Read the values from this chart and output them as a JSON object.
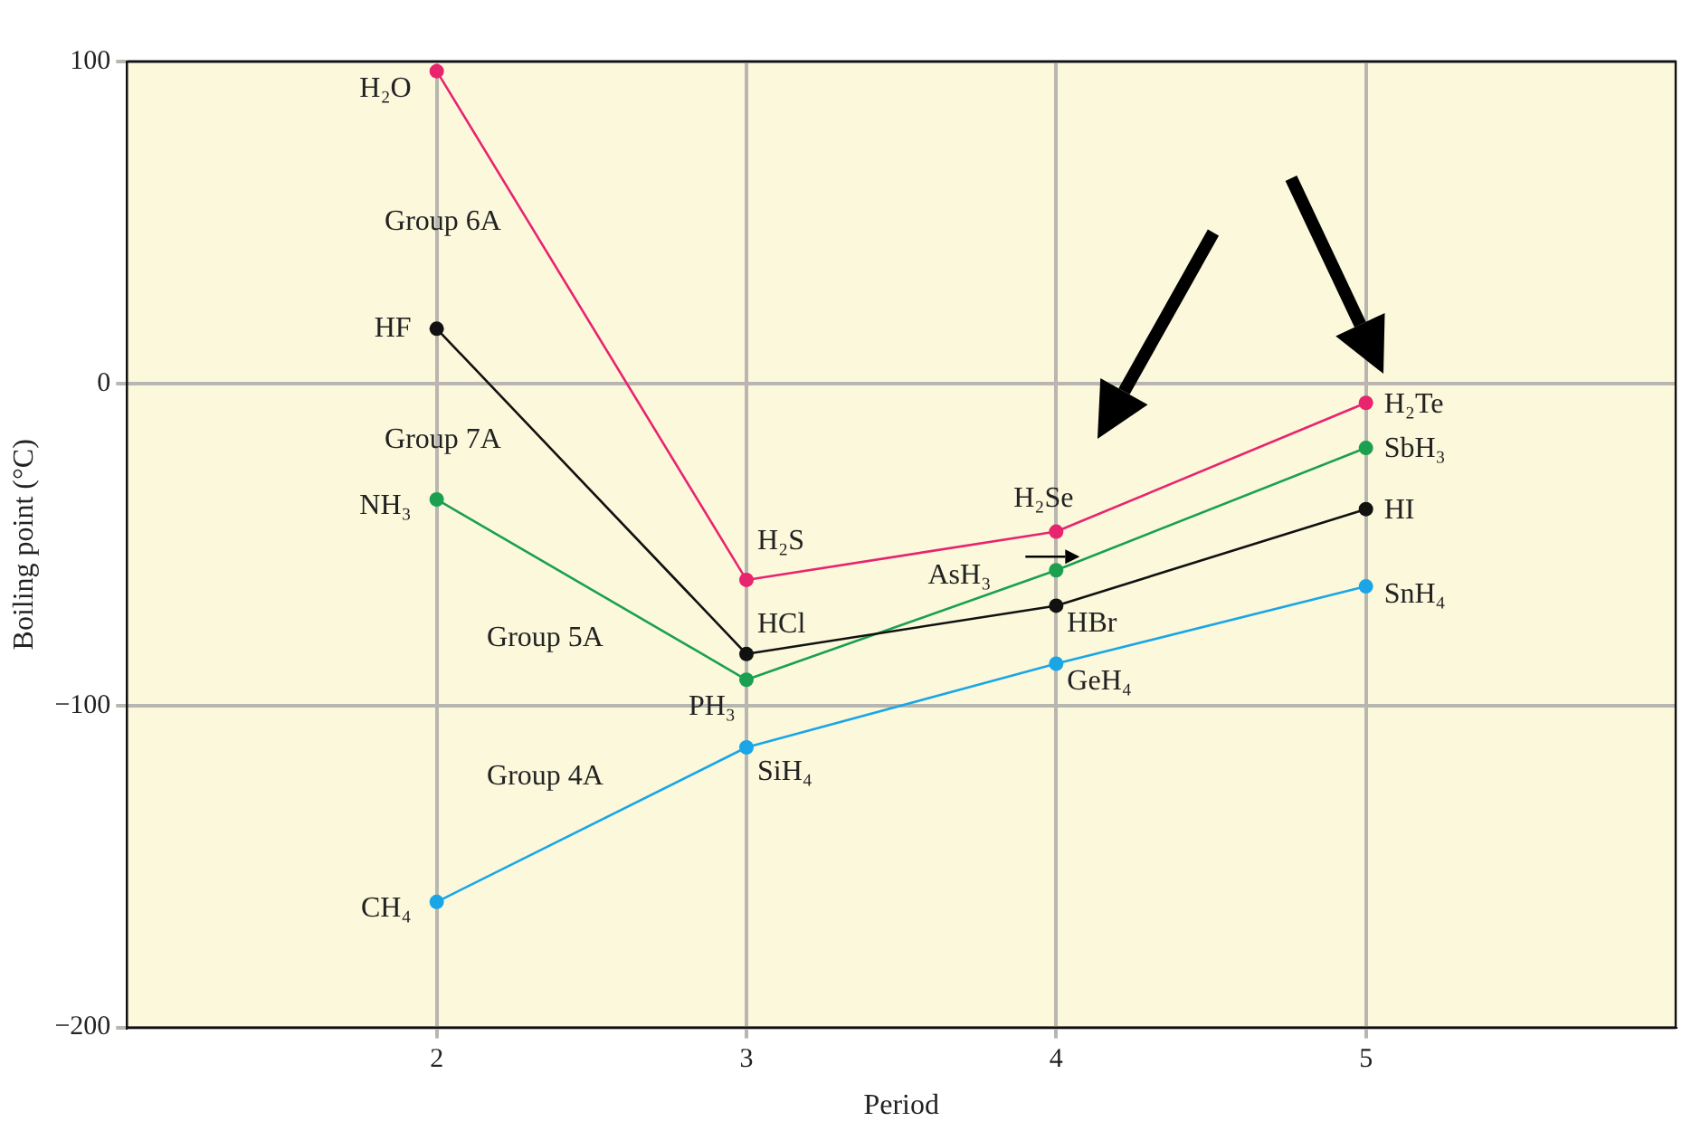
{
  "chart_data": {
    "type": "line",
    "xlabel": "Period",
    "ylabel": "Boiling point (°C)",
    "x": [
      2,
      3,
      4,
      5
    ],
    "xlim": [
      1,
      6
    ],
    "xticks": [
      2,
      3,
      4,
      5
    ],
    "ylim": [
      -200,
      100
    ],
    "yticks": [
      -200,
      -100,
      0,
      100
    ],
    "grid": true,
    "marker": "circle",
    "series": [
      {
        "name": "Group 6A",
        "color": "#e8246f",
        "values": [
          97,
          -61,
          -46,
          -6
        ]
      },
      {
        "name": "Group 7A",
        "color": "#111111",
        "values": [
          17,
          -84,
          -69,
          -39
        ]
      },
      {
        "name": "Group 5A",
        "color": "#1aa050",
        "values": [
          -36,
          -92,
          -58,
          -20
        ]
      },
      {
        "name": "Group 4A",
        "color": "#1aa6e6",
        "values": [
          -161,
          -113,
          -87,
          -63
        ]
      }
    ],
    "annotations": [
      {
        "text": "H₂O",
        "x": 2,
        "y": 97
      },
      {
        "text": "HF",
        "x": 2,
        "y": 17
      },
      {
        "text": "NH₃",
        "x": 2,
        "y": -36
      },
      {
        "text": "CH₄",
        "x": 2,
        "y": -161
      },
      {
        "text": "H₂S",
        "x": 3,
        "y": -61
      },
      {
        "text": "HCl",
        "x": 3,
        "y": -84
      },
      {
        "text": "PH₃",
        "x": 3,
        "y": -92
      },
      {
        "text": "SiH₄",
        "x": 3,
        "y": -113
      },
      {
        "text": "H₂Se",
        "x": 4,
        "y": -46
      },
      {
        "text": "AsH₃",
        "x": 4,
        "y": -58
      },
      {
        "text": "HBr",
        "x": 4,
        "y": -69
      },
      {
        "text": "GeH₄",
        "x": 4,
        "y": -87
      },
      {
        "text": "H₂Te",
        "x": 5,
        "y": -6
      },
      {
        "text": "SbH₃",
        "x": 5,
        "y": -20
      },
      {
        "text": "HI",
        "x": 5,
        "y": -39
      },
      {
        "text": "SnH₄",
        "x": 5,
        "y": -63
      }
    ]
  }
}
